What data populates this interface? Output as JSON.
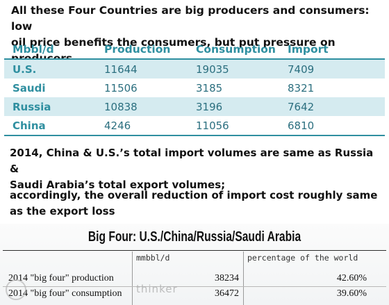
{
  "headline": {
    "line1": "All these Four Countries are big producers and consumers: low",
    "line2": "oil price benefits the consumers, but put pressure on producers"
  },
  "table": {
    "headers": [
      "Mbbl/d",
      "Production",
      "Consumption",
      "Import"
    ],
    "rows": [
      {
        "country": "U.S.",
        "production": "11644",
        "consumption": "19035",
        "import": "7409"
      },
      {
        "country": "Saudi",
        "production": "11506",
        "consumption": "3185",
        "import": "8321"
      },
      {
        "country": "Russia",
        "production": "10838",
        "consumption": "3196",
        "import": "7642"
      },
      {
        "country": "China",
        "production": "4246",
        "consumption": "11056",
        "import": "6810"
      }
    ],
    "colors": {
      "accent": "#2f8fa0",
      "band": "#d5ebf0"
    }
  },
  "paragraph1": {
    "line1": "2014, China & U.S.’s total import volumes are same as Russia &",
    "line2": "Saudi Arabia’s total export volumes;"
  },
  "paragraph2": {
    "line1": "accordingly, the overall reduction of import cost roughly same",
    "line2": "as the export loss"
  },
  "panel": {
    "title": "Big Four: U.S./China/Russia/Saudi Arabia",
    "col_unit": "mmbbl/d",
    "col_pct": "percentage of the world",
    "rows": [
      {
        "label": "2014 \"big four\" production",
        "value": "38234",
        "pct": "42.60%"
      },
      {
        "label": "2014 \"big four\" consumption",
        "value": "36472",
        "pct": "39.60%"
      }
    ]
  },
  "watermark": "thinker"
}
